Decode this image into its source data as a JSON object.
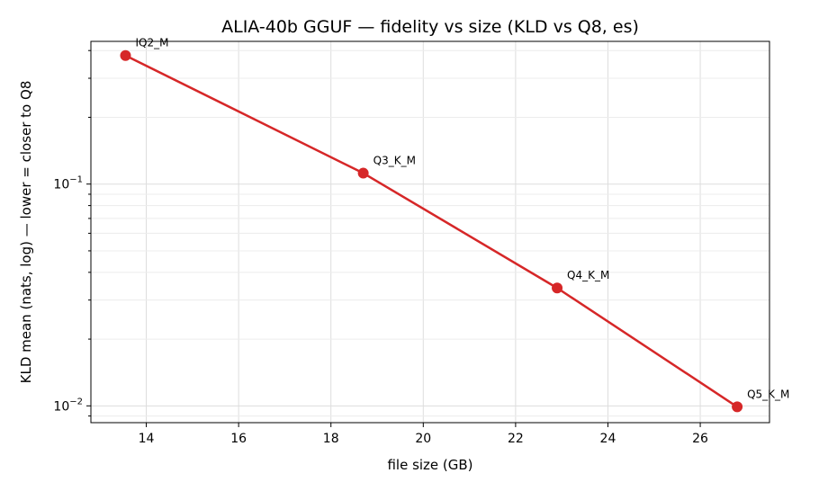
{
  "chart_data": {
    "type": "line",
    "title": "ALIA-40b GGUF — fidelity vs size (KLD vs Q8, es)",
    "xlabel": "file size (GB)",
    "ylabel": "KLD mean (nats, log) — lower = closer to Q8",
    "xlim": [
      12.8,
      27.5
    ],
    "ylim": [
      0.0084,
      0.44
    ],
    "yscale": "log",
    "grid": true,
    "x_ticks": [
      14,
      16,
      18,
      20,
      22,
      24,
      26
    ],
    "x_tick_labels": [
      "14",
      "16",
      "18",
      "20",
      "22",
      "24",
      "26"
    ],
    "y_ticks": [
      {
        "value": 0.1,
        "base": "10",
        "exp": "−1"
      },
      {
        "value": 0.01,
        "base": "10",
        "exp": "−2"
      }
    ],
    "series": [
      {
        "color": "#d62728",
        "points": [
          {
            "label": "IQ2_M",
            "x": 13.55,
            "y": 0.38
          },
          {
            "label": "Q3_K_M",
            "x": 18.7,
            "y": 0.112
          },
          {
            "label": "Q4_K_M",
            "x": 22.9,
            "y": 0.034
          },
          {
            "label": "Q5_K_M",
            "x": 26.8,
            "y": 0.0099
          }
        ]
      }
    ]
  }
}
